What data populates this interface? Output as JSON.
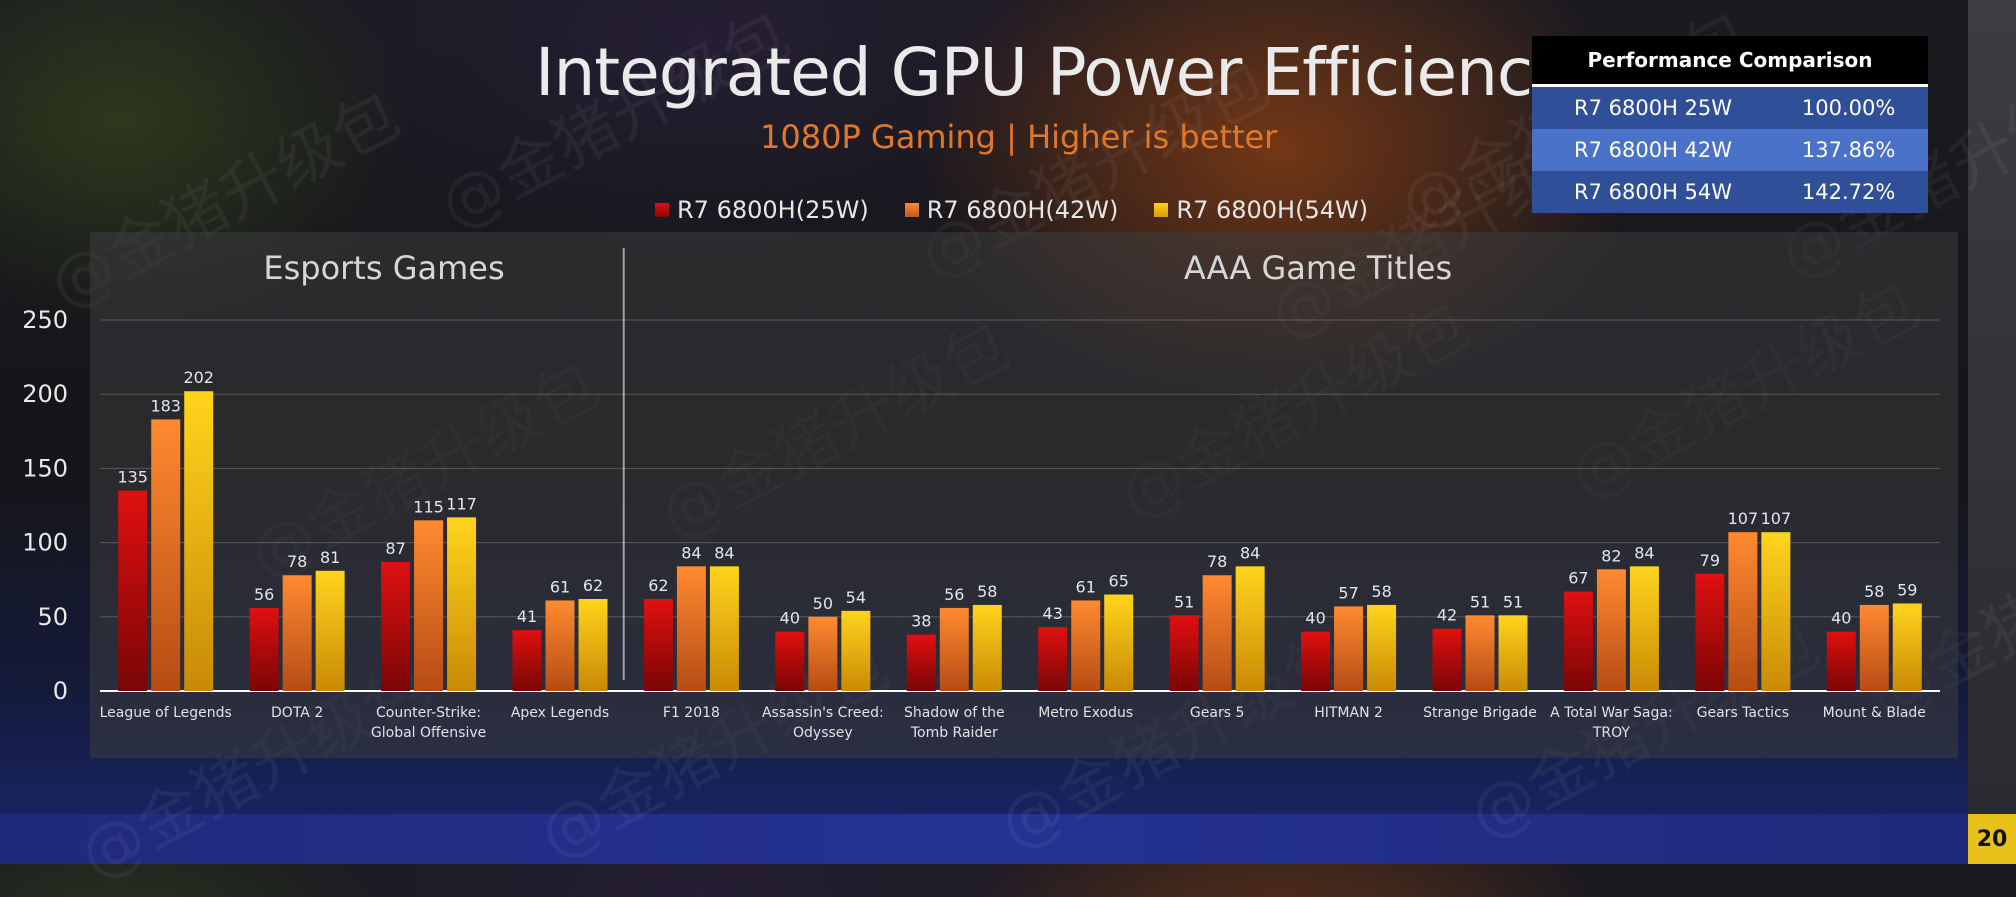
{
  "title": "Integrated GPU Power Efficiency",
  "subtitle": "1080P Gaming | Higher is better",
  "page_number": "20",
  "watermark_text": "@金猪升级包",
  "colors": {
    "series_25w": "#c40d0d",
    "series_42w": "#f07a22",
    "series_54w": "#f5c014",
    "subtitle": "#e0782a",
    "accent_bar": "#e8c21a"
  },
  "legend": [
    {
      "label": "R7 6800H(25W)",
      "color": "#c40d0d"
    },
    {
      "label": "R7 6800H(42W)",
      "color": "#f07a22"
    },
    {
      "label": "R7 6800H(54W)",
      "color": "#f5c014"
    }
  ],
  "perf_table": {
    "header": "Performance Comparison",
    "rows": [
      {
        "name": "R7 6800H 25W",
        "value": "100.00%"
      },
      {
        "name": "R7 6800H 42W",
        "value": "137.86%"
      },
      {
        "name": "R7 6800H 54W",
        "value": "142.72%"
      }
    ]
  },
  "chart_data": {
    "type": "bar",
    "title": "Integrated GPU Power Efficiency",
    "xlabel": "",
    "ylabel": "",
    "ylim": [
      0,
      250
    ],
    "yticks": [
      0,
      50,
      100,
      150,
      200,
      250
    ],
    "grid": true,
    "sections": [
      {
        "label": "Esports Games",
        "start": 0,
        "end": 3
      },
      {
        "label": "AAA Game Titles",
        "start": 4,
        "end": 13
      }
    ],
    "categories": [
      "League of Legends",
      "DOTA 2",
      "Counter-Strike: Global Offensive",
      "Apex Legends",
      "F1 2018",
      "Assassin's Creed: Odyssey",
      "Shadow of the Tomb Raider",
      "Metro Exodus",
      "Gears 5",
      "HITMAN 2",
      "Strange Brigade",
      "A Total War Saga: TROY",
      "Gears Tactics",
      "Mount & Blade"
    ],
    "category_lines": [
      [
        "League of Legends"
      ],
      [
        "DOTA 2"
      ],
      [
        "Counter-Strike:",
        "Global Offensive"
      ],
      [
        "Apex Legends"
      ],
      [
        "F1 2018"
      ],
      [
        "Assassin's Creed:",
        "Odyssey"
      ],
      [
        "Shadow of the",
        "Tomb Raider"
      ],
      [
        "Metro Exodus"
      ],
      [
        "Gears 5"
      ],
      [
        "HITMAN 2"
      ],
      [
        "Strange Brigade"
      ],
      [
        "A Total War Saga:",
        "TROY"
      ],
      [
        "Gears Tactics"
      ],
      [
        "Mount & Blade"
      ]
    ],
    "series": [
      {
        "name": "R7 6800H(25W)",
        "values": [
          135,
          56,
          87,
          41,
          62,
          40,
          38,
          43,
          51,
          40,
          42,
          67,
          79,
          40
        ]
      },
      {
        "name": "R7 6800H(42W)",
        "values": [
          183,
          78,
          115,
          61,
          84,
          50,
          56,
          61,
          78,
          57,
          51,
          82,
          107,
          58
        ]
      },
      {
        "name": "R7 6800H(54W)",
        "values": [
          202,
          81,
          117,
          62,
          84,
          54,
          58,
          65,
          84,
          58,
          51,
          84,
          107,
          59
        ]
      }
    ]
  }
}
